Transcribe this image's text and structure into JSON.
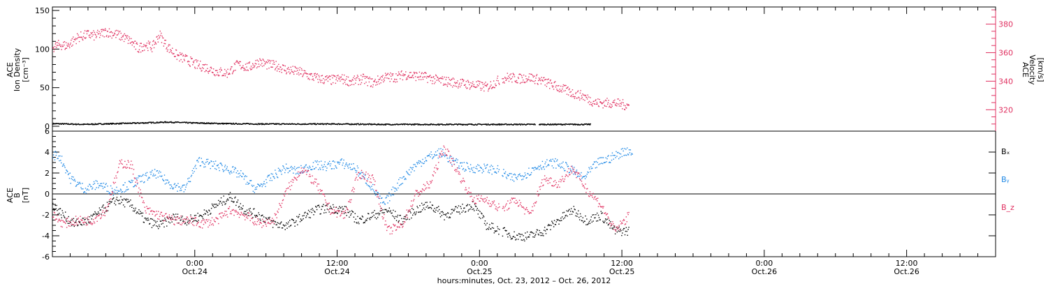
{
  "chart_data": [
    {
      "type": "scatter",
      "panel": "top",
      "ylabel_left": [
        "ACE",
        "Ion Density",
        "[cm⁻³]"
      ],
      "ylabel_right": [
        "ACE",
        "Velocity",
        "[km/s]"
      ],
      "ylim_left": [
        0,
        150
      ],
      "yticks_left": [
        "0",
        "50",
        "100",
        "150"
      ],
      "ylim_right": [
        305,
        392
      ],
      "yticks_right": [
        "320",
        "340",
        "360",
        "380"
      ],
      "series": [
        {
          "axis": "left",
          "color": "#000000",
          "points": [
            [
              0.0,
              4
            ],
            [
              0.8,
              3
            ],
            [
              1.6,
              4
            ],
            [
              2.4,
              5
            ],
            [
              3.0,
              6
            ],
            [
              3.6,
              5
            ],
            [
              4.5,
              4
            ],
            [
              5.5,
              3.5
            ],
            [
              6.5,
              3.5
            ],
            [
              7.5,
              3.5
            ],
            [
              8.5,
              3
            ],
            [
              9.5,
              3
            ],
            [
              10.5,
              3
            ],
            [
              11.5,
              3
            ],
            [
              12.5,
              3
            ],
            [
              14.0,
              3
            ]
          ]
        },
        {
          "axis": "right",
          "color": "#e03060",
          "points": [
            [
              0.0,
              364
            ],
            [
              0.2,
              366
            ],
            [
              0.4,
              365
            ],
            [
              0.7,
              371
            ],
            [
              1.0,
              373
            ],
            [
              1.2,
              372
            ],
            [
              1.5,
              375
            ],
            [
              1.8,
              373
            ],
            [
              2.0,
              371
            ],
            [
              2.2,
              368
            ],
            [
              2.4,
              363
            ],
            [
              2.6,
              366
            ],
            [
              2.8,
              364
            ],
            [
              3.0,
              373
            ],
            [
              3.2,
              365
            ],
            [
              3.5,
              358
            ],
            [
              3.8,
              355
            ],
            [
              4.0,
              352
            ],
            [
              4.3,
              350
            ],
            [
              4.6,
              347
            ],
            [
              4.9,
              346
            ],
            [
              5.2,
              352
            ],
            [
              5.5,
              350
            ],
            [
              5.8,
              354
            ],
            [
              6.0,
              352
            ],
            [
              6.3,
              351
            ],
            [
              6.6,
              348
            ],
            [
              6.9,
              347
            ],
            [
              7.2,
              344
            ],
            [
              7.5,
              342
            ],
            [
              7.8,
              341
            ],
            [
              8.1,
              342
            ],
            [
              8.4,
              340
            ],
            [
              8.7,
              342
            ],
            [
              9.0,
              339
            ],
            [
              9.3,
              343
            ],
            [
              9.6,
              343
            ],
            [
              9.9,
              345
            ],
            [
              10.2,
              344
            ],
            [
              10.5,
              343
            ],
            [
              10.8,
              341
            ],
            [
              11.1,
              340
            ],
            [
              11.4,
              339
            ],
            [
              11.7,
              338
            ],
            [
              12.0,
              337
            ],
            [
              12.2,
              336
            ],
            [
              12.4,
              339
            ],
            [
              12.6,
              342
            ],
            [
              12.8,
              343
            ],
            [
              13.1,
              342
            ],
            [
              13.4,
              343
            ],
            [
              13.7,
              341
            ],
            [
              13.9,
              339
            ],
            [
              14.2,
              336
            ],
            [
              14.5,
              333
            ],
            [
              14.7,
              331
            ],
            [
              14.9,
              330
            ],
            [
              15.1,
              327
            ],
            [
              15.3,
              325
            ],
            [
              15.5,
              325
            ],
            [
              15.8,
              325
            ],
            [
              16.0,
              324
            ],
            [
              16.2,
              323
            ]
          ]
        }
      ]
    },
    {
      "type": "scatter",
      "panel": "bottom",
      "ylabel_left": [
        "ACE",
        "B",
        "[nT]"
      ],
      "ylim": [
        -6,
        6
      ],
      "yticks": [
        "-6",
        "-4",
        "-2",
        "0",
        "2",
        "4",
        "6"
      ],
      "zero_line": true,
      "legend": [
        {
          "label": "Bₓ",
          "color": "#000000"
        },
        {
          "label": "Bᵧ",
          "color": "#1e88e5"
        },
        {
          "label": "B_z",
          "color": "#e03060"
        }
      ],
      "series": [
        {
          "name": "Bₓ",
          "color": "#000000",
          "points": [
            [
              0.0,
              -1
            ],
            [
              0.3,
              -2
            ],
            [
              0.6,
              -2.8
            ],
            [
              1.0,
              -2.5
            ],
            [
              1.4,
              -1.5
            ],
            [
              1.8,
              -0.5
            ],
            [
              2.2,
              -1.0
            ],
            [
              2.6,
              -2.5
            ],
            [
              3.0,
              -3.0
            ],
            [
              3.4,
              -2.2
            ],
            [
              3.8,
              -2.5
            ],
            [
              4.2,
              -2.0
            ],
            [
              4.6,
              -1.0
            ],
            [
              5.0,
              -0.2
            ],
            [
              5.4,
              -1.5
            ],
            [
              5.8,
              -2.0
            ],
            [
              6.2,
              -2.8
            ],
            [
              6.6,
              -3.0
            ],
            [
              7.0,
              -2.2
            ],
            [
              7.4,
              -1.5
            ],
            [
              7.8,
              -1.3
            ],
            [
              8.2,
              -1.5
            ],
            [
              8.6,
              -2.5
            ],
            [
              9.0,
              -2.0
            ],
            [
              9.4,
              -1.5
            ],
            [
              9.8,
              -2.5
            ],
            [
              10.2,
              -1.5
            ],
            [
              10.6,
              -1.0
            ],
            [
              11.0,
              -2.0
            ],
            [
              11.4,
              -1.5
            ],
            [
              11.8,
              -1.0
            ],
            [
              12.2,
              -3.0
            ],
            [
              12.6,
              -3.5
            ],
            [
              13.0,
              -4.0
            ],
            [
              13.4,
              -4.0
            ],
            [
              13.8,
              -3.5
            ],
            [
              14.2,
              -2.5
            ],
            [
              14.6,
              -1.5
            ],
            [
              15.0,
              -2.5
            ],
            [
              15.4,
              -2.0
            ],
            [
              15.8,
              -3.5
            ],
            [
              16.2,
              -3.5
            ]
          ]
        },
        {
          "name": "Bᵧ",
          "color": "#1e88e5",
          "points": [
            [
              0.0,
              3.8
            ],
            [
              0.2,
              3.6
            ],
            [
              0.5,
              1.5
            ],
            [
              0.9,
              0.5
            ],
            [
              1.3,
              1.0
            ],
            [
              1.7,
              0.3
            ],
            [
              2.1,
              0.8
            ],
            [
              2.5,
              1.5
            ],
            [
              2.9,
              2.0
            ],
            [
              3.3,
              1.0
            ],
            [
              3.7,
              0.5
            ],
            [
              4.1,
              3.2
            ],
            [
              4.5,
              2.8
            ],
            [
              4.9,
              2.5
            ],
            [
              5.3,
              1.8
            ],
            [
              5.7,
              0.5
            ],
            [
              6.1,
              1.5
            ],
            [
              6.5,
              2.5
            ],
            [
              6.9,
              2.2
            ],
            [
              7.3,
              2.8
            ],
            [
              7.7,
              2.7
            ],
            [
              8.1,
              3.0
            ],
            [
              8.5,
              2.5
            ],
            [
              8.9,
              1.0
            ],
            [
              9.3,
              -1.0
            ],
            [
              9.7,
              1.0
            ],
            [
              10.1,
              2.5
            ],
            [
              10.5,
              3.5
            ],
            [
              10.9,
              4.0
            ],
            [
              11.3,
              3.0
            ],
            [
              11.7,
              2.5
            ],
            [
              12.1,
              2.5
            ],
            [
              12.5,
              2.3
            ],
            [
              12.9,
              1.5
            ],
            [
              13.3,
              2.0
            ],
            [
              13.7,
              2.8
            ],
            [
              14.1,
              3.0
            ],
            [
              14.5,
              2.5
            ],
            [
              14.9,
              1.5
            ],
            [
              15.3,
              3.0
            ],
            [
              15.7,
              3.5
            ],
            [
              16.1,
              4.2
            ],
            [
              16.3,
              4.0
            ]
          ]
        },
        {
          "name": "B_z",
          "color": "#e03060",
          "points": [
            [
              0.0,
              -2.0
            ],
            [
              0.3,
              -2.8
            ],
            [
              0.7,
              -2.5
            ],
            [
              1.1,
              -2.5
            ],
            [
              1.5,
              -1.5
            ],
            [
              1.9,
              3.0
            ],
            [
              2.2,
              2.8
            ],
            [
              2.6,
              -1.5
            ],
            [
              3.0,
              -2.0
            ],
            [
              3.4,
              -2.5
            ],
            [
              3.8,
              -2.5
            ],
            [
              4.2,
              -2.8
            ],
            [
              4.6,
              -2.5
            ],
            [
              5.0,
              -1.5
            ],
            [
              5.4,
              -2.0
            ],
            [
              5.8,
              -2.8
            ],
            [
              6.2,
              -2.5
            ],
            [
              6.6,
              0.5
            ],
            [
              7.0,
              2.5
            ],
            [
              7.4,
              1.0
            ],
            [
              7.8,
              -1.5
            ],
            [
              8.2,
              -2.0
            ],
            [
              8.6,
              2.0
            ],
            [
              9.0,
              1.5
            ],
            [
              9.4,
              -3.5
            ],
            [
              9.8,
              -3.0
            ],
            [
              10.2,
              0.0
            ],
            [
              10.6,
              1.0
            ],
            [
              11.0,
              4.5
            ],
            [
              11.4,
              2.0
            ],
            [
              11.8,
              -0.5
            ],
            [
              12.2,
              -0.5
            ],
            [
              12.6,
              -1.5
            ],
            [
              13.0,
              -0.5
            ],
            [
              13.4,
              -2.0
            ],
            [
              13.8,
              1.5
            ],
            [
              14.2,
              1.0
            ],
            [
              14.6,
              2.5
            ],
            [
              15.0,
              0.5
            ],
            [
              15.4,
              -1.0
            ],
            [
              15.8,
              -3.5
            ],
            [
              16.2,
              -2.0
            ]
          ]
        }
      ]
    }
  ],
  "xaxis": {
    "ticks": [
      {
        "time": "0:00",
        "date": "Oct.24",
        "x": 4.0
      },
      {
        "time": "12:00",
        "date": "Oct.24",
        "x": 8.0
      },
      {
        "time": "0:00",
        "date": "Oct.25",
        "x": 12.0
      },
      {
        "time": "12:00",
        "date": "Oct.25",
        "x": 16.0
      },
      {
        "time": "0:00",
        "date": "Oct.26",
        "x": 20.0
      },
      {
        "time": "12:00",
        "date": "Oct.26",
        "x": 24.0
      }
    ],
    "label": "hours:minutes, Oct. 23, 2012 – Oct. 26, 2012"
  },
  "colors": {
    "black": "#000000",
    "blue": "#1e88e5",
    "pink": "#e03060",
    "frame": "#000000"
  }
}
